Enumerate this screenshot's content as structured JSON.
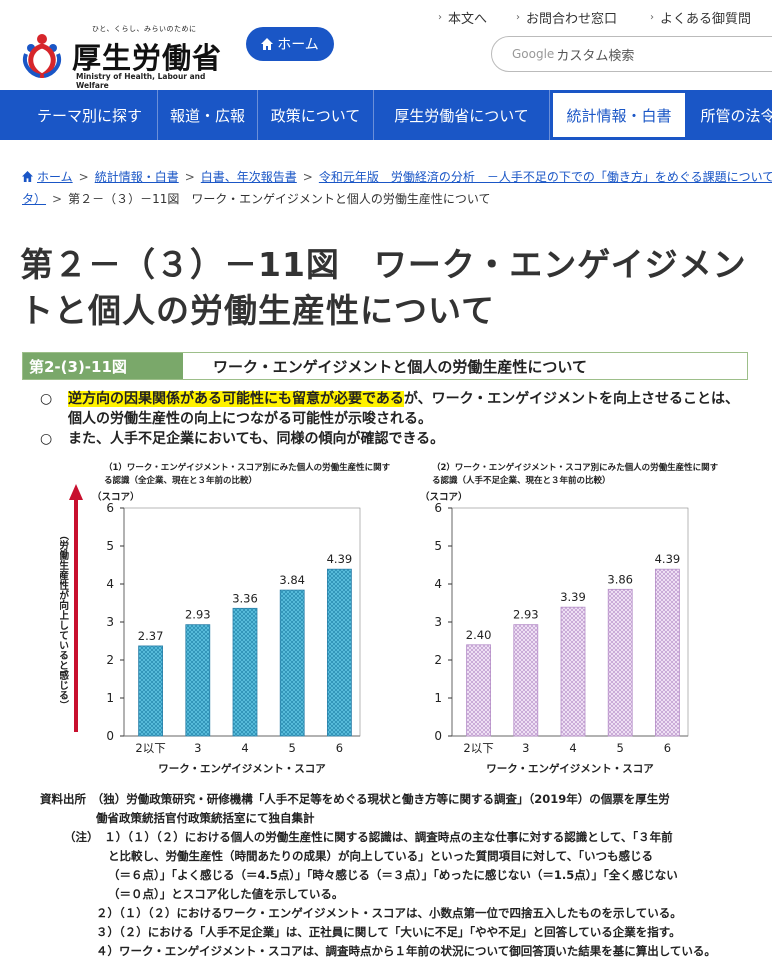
{
  "logo": {
    "tagline": "ひと、くらし、みらいのために",
    "name": "厚生労働省",
    "en": "Ministry of Health, Labour and Welfare"
  },
  "header": {
    "home_label": "ホーム",
    "util": [
      "本文へ",
      "お問合わせ窓口",
      "よくある御質問"
    ],
    "search_brand": "Google",
    "search_placeholder": "カスタム検索"
  },
  "nav": [
    "テーマ別に探す",
    "報道・広報",
    "政策について",
    "厚生労働省について",
    "統計情報・白書",
    "所管の法令"
  ],
  "breadcrumb": {
    "items": [
      "ホーム",
      "統計情報・白書",
      "白書、年次報告書",
      "令和元年版　労働経済の分析　－人手不足の下での「働き方」をめぐる課題について",
      "タ）"
    ],
    "current": "第２－（３）－11図　ワーク・エンゲイジメントと個人の労働生産性について"
  },
  "page_title": "第２－（３）－11図　ワーク・エンゲイジメントと個人の労働生産性について",
  "figure": {
    "number": "第2-(3)-11図",
    "title": "ワーク・エンゲイジメントと個人の労働生産性について",
    "bullet1_highlight": "逆方向の因果関係がある可能性にも留意が必要である",
    "bullet1_rest": "が、ワーク・エンゲイジメントを向上させることは、個人の労働生産性の向上につながる可能性が示唆される。",
    "bullet2": "また、人手不足企業においても、同様の傾向が確認できる。",
    "bullet_mark": "○"
  },
  "chart_data": [
    {
      "type": "bar",
      "title": "（1）ワーク・エンゲイジメント・スコア別にみた個人の労働生産性に関する認識（全企業、現在と３年前の比較）",
      "categories": [
        "2以下",
        "3",
        "4",
        "5",
        "6"
      ],
      "values": [
        2.37,
        2.93,
        3.36,
        3.84,
        4.39
      ],
      "value_labels": [
        "2.37",
        "2.93",
        "3.36",
        "3.84",
        "4.39"
      ],
      "xlabel": "ワーク・エンゲイジメント・スコア",
      "ylabel": "（スコア）",
      "y_arrow_label": "（労働生産性が向上していると感じる）",
      "ylim": [
        0,
        6
      ],
      "yticks": [
        "0",
        "1",
        "2",
        "3",
        "4",
        "5",
        "6"
      ],
      "bar_color": "#5bc0de"
    },
    {
      "type": "bar",
      "title": "（2）ワーク・エンゲイジメント・スコア別にみた個人の労働生産性に関する認識（人手不足企業、現在と３年前の比較）",
      "categories": [
        "2以下",
        "3",
        "4",
        "5",
        "6"
      ],
      "values": [
        2.4,
        2.93,
        3.39,
        3.86,
        4.39
      ],
      "value_labels": [
        "2.40",
        "2.93",
        "3.39",
        "3.86",
        "4.39"
      ],
      "xlabel": "ワーク・エンゲイジメント・スコア",
      "ylabel": "（スコア）",
      "ylim": [
        0,
        6
      ],
      "yticks": [
        "0",
        "1",
        "2",
        "3",
        "4",
        "5",
        "6"
      ],
      "bar_color": "#d9b8e6"
    }
  ],
  "notes": {
    "source_label": "資料出所",
    "source_1": "（独）労働政策研究・研修機構「人手不足等をめぐる現状と働き方等に関する調査」（2019年）の個票を厚生労",
    "source_2": "働省政策統括官付政策統括室にて独自集計",
    "note_label": "（注）",
    "n1a": "１）（１）（２）における個人の労働生産性に関する認識は、調査時点の主な仕事に対する認識として、「３年前",
    "n1b": "と比較し、労働生産性（時間あたりの成果）が向上している」といった質問項目に対して、「いつも感じる",
    "n1c": "（＝６点）」「よく感じる（＝4.5点）」「時々感じる（＝３点）」「めったに感じない（＝1.5点）」「全く感じない",
    "n1d": "（＝０点）」とスコア化した値を示している。",
    "n2": "２）（１）（２）におけるワーク・エンゲイジメント・スコアは、小数点第一位で四捨五入したものを示している。",
    "n3": "３）（２）における「人手不足企業」は、正社員に関して「大いに不足」「やや不足」と回答している企業を指す。",
    "n4": "４）ワーク・エンゲイジメント・スコアは、調査時点から１年前の状況について御回答頂いた結果を基に算出している。"
  }
}
